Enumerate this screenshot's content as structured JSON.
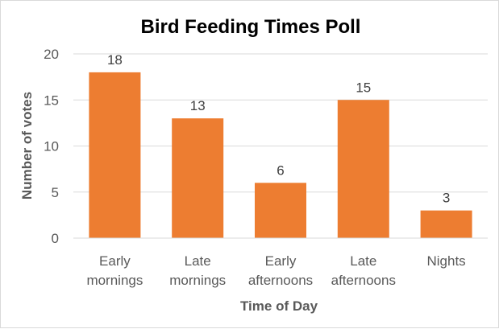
{
  "chart_data": {
    "type": "bar",
    "title": "Bird Feeding Times Poll",
    "xlabel": "Time of Day",
    "ylabel": "Number of votes",
    "categories": [
      [
        "Early",
        "mornings"
      ],
      [
        "Late",
        "mornings"
      ],
      [
        "Early",
        "afternoons"
      ],
      [
        "Late",
        "afternoons"
      ],
      [
        "Nights"
      ]
    ],
    "values": [
      18,
      13,
      6,
      15,
      3
    ],
    "data_labels": [
      "18",
      "13",
      "6",
      "15",
      "3"
    ],
    "ylim": [
      0,
      20
    ],
    "yticks": [
      0,
      5,
      10,
      15,
      20
    ],
    "ytick_labels": [
      "0",
      "5",
      "10",
      "15",
      "20"
    ],
    "grid": true,
    "legend": "none",
    "bar_color": "#ed7d31"
  }
}
